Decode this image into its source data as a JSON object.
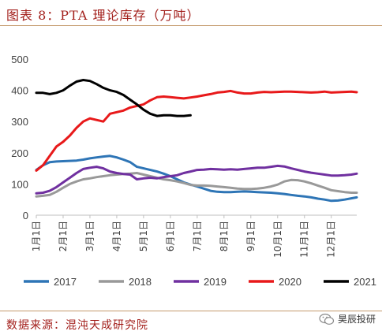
{
  "header": {
    "title": "图表 8：PTA 理论库存（万吨）"
  },
  "source": {
    "text": "数据来源：混沌天成研究院"
  },
  "watermark": {
    "text": "昊辰投研",
    "icon": "wechat-icon"
  },
  "chart_data": {
    "type": "line",
    "title": "",
    "xlabel": "",
    "ylabel": "",
    "ylim": [
      0,
      500
    ],
    "yticks": [
      0,
      100,
      200,
      300,
      400,
      500
    ],
    "xlim": [
      1,
      12.95
    ],
    "xtick_labels": [
      "1月1日",
      "2月1日",
      "3月1日",
      "4月1日",
      "5月1日",
      "6月1日",
      "7月1日",
      "8月1日",
      "9月1日",
      "10月1日",
      "11月1日",
      "12月1日"
    ],
    "grid": false,
    "legend_position": "bottom",
    "series": [
      {
        "name": "2017",
        "color": "#2e75b6",
        "x": [
          1,
          1.25,
          1.5,
          1.75,
          2,
          2.25,
          2.5,
          2.75,
          3,
          3.25,
          3.5,
          3.75,
          4,
          4.25,
          4.5,
          4.75,
          5,
          5.25,
          5.5,
          5.75,
          6,
          6.25,
          6.5,
          6.75,
          7,
          7.25,
          7.5,
          7.75,
          8,
          8.25,
          8.5,
          8.75,
          9,
          9.25,
          9.5,
          9.75,
          10,
          10.25,
          10.5,
          10.75,
          11,
          11.25,
          11.5,
          11.75,
          12,
          12.25,
          12.5,
          12.75,
          12.95
        ],
        "values": [
          145,
          160,
          170,
          172,
          173,
          174,
          175,
          178,
          182,
          185,
          188,
          190,
          185,
          178,
          170,
          155,
          150,
          145,
          140,
          133,
          125,
          115,
          105,
          98,
          92,
          85,
          78,
          75,
          74,
          74,
          75,
          76,
          75,
          74,
          73,
          72,
          70,
          68,
          65,
          62,
          60,
          57,
          53,
          50,
          46,
          47,
          50,
          54,
          57
        ]
      },
      {
        "name": "2018",
        "color": "#999999",
        "x": [
          1,
          1.25,
          1.5,
          1.75,
          2,
          2.25,
          2.5,
          2.75,
          3,
          3.25,
          3.5,
          3.75,
          4,
          4.25,
          4.5,
          4.75,
          5,
          5.25,
          5.5,
          5.75,
          6,
          6.25,
          6.5,
          6.75,
          7,
          7.25,
          7.5,
          7.75,
          8,
          8.25,
          8.5,
          8.75,
          9,
          9.25,
          9.5,
          9.75,
          10,
          10.25,
          10.5,
          10.75,
          11,
          11.25,
          11.5,
          11.75,
          12,
          12.25,
          12.5,
          12.75,
          12.95
        ],
        "values": [
          60,
          62,
          65,
          75,
          88,
          100,
          108,
          115,
          118,
          122,
          125,
          128,
          130,
          132,
          133,
          135,
          130,
          125,
          120,
          115,
          112,
          108,
          103,
          97,
          95,
          95,
          94,
          92,
          90,
          88,
          85,
          84,
          84,
          85,
          88,
          92,
          98,
          108,
          113,
          112,
          108,
          102,
          95,
          88,
          80,
          77,
          74,
          72,
          72
        ]
      },
      {
        "name": "2019",
        "color": "#7030a0",
        "x": [
          1,
          1.25,
          1.5,
          1.75,
          2,
          2.25,
          2.5,
          2.75,
          3,
          3.25,
          3.5,
          3.75,
          4,
          4.25,
          4.5,
          4.75,
          5,
          5.25,
          5.5,
          5.75,
          6,
          6.25,
          6.5,
          6.75,
          7,
          7.25,
          7.5,
          7.75,
          8,
          8.25,
          8.5,
          8.75,
          9,
          9.25,
          9.5,
          9.75,
          10,
          10.25,
          10.5,
          10.75,
          11,
          11.25,
          11.5,
          11.75,
          12,
          12.25,
          12.5,
          12.75,
          12.95
        ],
        "values": [
          70,
          72,
          78,
          90,
          105,
          120,
          135,
          148,
          152,
          155,
          150,
          140,
          135,
          132,
          130,
          115,
          118,
          120,
          118,
          122,
          125,
          128,
          135,
          140,
          145,
          146,
          148,
          147,
          146,
          147,
          146,
          148,
          150,
          152,
          152,
          155,
          158,
          156,
          150,
          145,
          140,
          136,
          133,
          130,
          127,
          127,
          128,
          130,
          133
        ]
      },
      {
        "name": "2020",
        "color": "#e8191a",
        "x": [
          1,
          1.25,
          1.5,
          1.75,
          2,
          2.25,
          2.5,
          2.75,
          3,
          3.25,
          3.5,
          3.75,
          4,
          4.25,
          4.5,
          4.75,
          5,
          5.25,
          5.5,
          5.75,
          6,
          6.25,
          6.5,
          6.75,
          7,
          7.25,
          7.5,
          7.75,
          8,
          8.25,
          8.5,
          8.75,
          9,
          9.25,
          9.5,
          9.75,
          10,
          10.25,
          10.5,
          10.75,
          11,
          11.25,
          11.5,
          11.75,
          12,
          12.25,
          12.5,
          12.75,
          12.95
        ],
        "values": [
          143,
          160,
          190,
          220,
          235,
          255,
          280,
          300,
          310,
          305,
          300,
          325,
          330,
          335,
          345,
          350,
          355,
          368,
          378,
          380,
          378,
          376,
          374,
          377,
          380,
          384,
          388,
          393,
          395,
          398,
          393,
          390,
          390,
          393,
          395,
          394,
          395,
          396,
          396,
          395,
          394,
          393,
          394,
          396,
          393,
          394,
          395,
          396,
          394
        ]
      },
      {
        "name": "2021",
        "color": "#000000",
        "x": [
          1,
          1.25,
          1.5,
          1.75,
          2,
          2.25,
          2.5,
          2.75,
          3,
          3.25,
          3.5,
          3.75,
          4,
          4.25,
          4.5,
          4.75,
          5,
          5.25,
          5.5,
          5.75,
          6,
          6.25,
          6.5,
          6.75
        ],
        "values": [
          392,
          392,
          388,
          392,
          400,
          415,
          428,
          433,
          430,
          420,
          408,
          400,
          395,
          385,
          370,
          355,
          338,
          325,
          318,
          320,
          320,
          318,
          318,
          320
        ]
      }
    ]
  }
}
